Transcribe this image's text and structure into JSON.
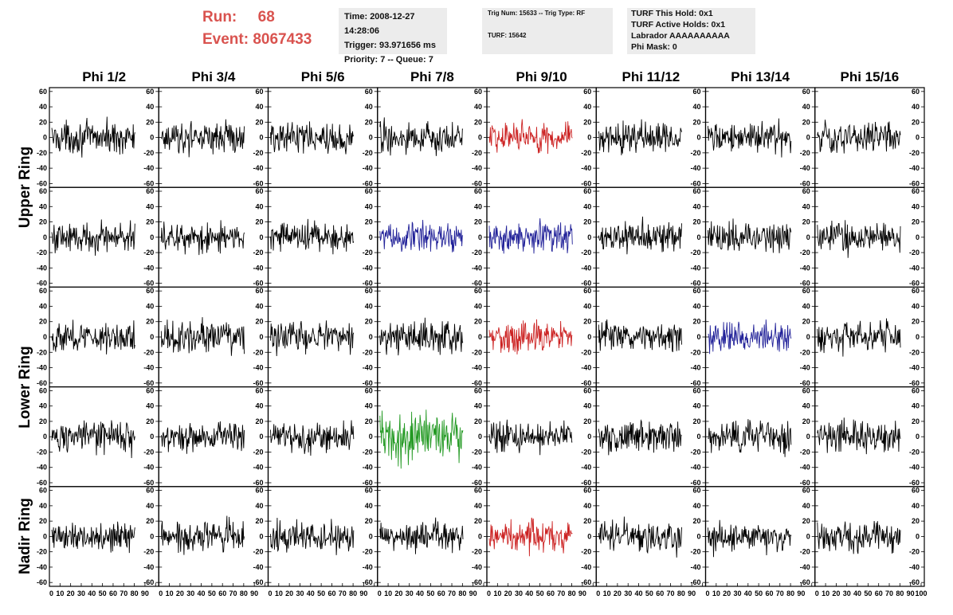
{
  "header": {
    "run_label": "Run:",
    "run_value": "68",
    "event_label": "Event:",
    "event_value": "8067433",
    "time": "Time: 2008-12-27 14:28:06",
    "trigger": "Trigger: 93.971656 ms",
    "priority": "Priority: 7 -- Queue: 7",
    "trig_num": "Trig Num: 15633 -- Trig Type: RF",
    "turf": "TURF: 15642",
    "turf_this_hold": "TURF This Hold: 0x1",
    "turf_active_holds": "TURF Active Holds: 0x1",
    "labrador": "Labrador AAAAAAAAAA",
    "phi_mask": "Phi Mask: 0"
  },
  "columns": [
    "Phi 1/2",
    "Phi 3/4",
    "Phi 5/6",
    "Phi 7/8",
    "Phi 9/10",
    "Phi 11/12",
    "Phi 13/14",
    "Phi 15/16"
  ],
  "rings": [
    "Upper Ring",
    "Lower Ring",
    "Nadir Ring"
  ],
  "colors": {
    "default": "#000000",
    "red": "#cc2222",
    "blue": "#222299",
    "green": "#229922",
    "run_text": "#d9534f"
  },
  "chart_data": {
    "type": "line",
    "ylim": [
      -65,
      65
    ],
    "xlim": [
      0,
      100
    ],
    "y_ticks": [
      "60",
      "40",
      "20",
      "0",
      "-20",
      "-40",
      "-60"
    ],
    "x_ticks": [
      "0",
      "10",
      "20",
      "30",
      "40",
      "50",
      "60",
      "70",
      "80",
      "90",
      "100"
    ],
    "rows": 5,
    "cols": 8,
    "panel_colors": [
      [
        "default",
        "default",
        "default",
        "default",
        "red",
        "default",
        "default",
        "default"
      ],
      [
        "default",
        "default",
        "default",
        "blue",
        "blue",
        "default",
        "default",
        "default"
      ],
      [
        "default",
        "default",
        "default",
        "default",
        "red",
        "default",
        "blue",
        "default"
      ],
      [
        "default",
        "default",
        "default",
        "green",
        "default",
        "default",
        "default",
        "default"
      ],
      [
        "default",
        "default",
        "default",
        "default",
        "red",
        "default",
        "default",
        "default"
      ]
    ],
    "amplitude_note": "waveforms are noise-like, peak roughly ±40"
  }
}
